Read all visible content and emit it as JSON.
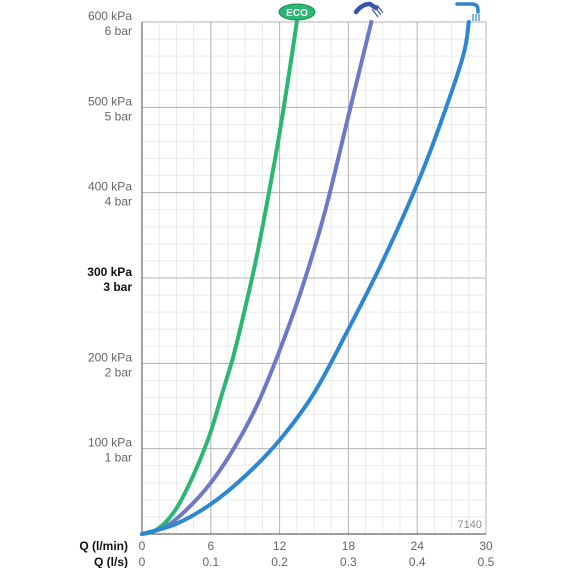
{
  "chart_data": {
    "type": "line",
    "code": "7140",
    "x_label_primary": "Q (l/min)",
    "x_label_secondary": "Q (l/s)",
    "x_ticks_primary": [
      "0",
      "6",
      "12",
      "18",
      "24",
      "30"
    ],
    "x_ticks_secondary": [
      "0",
      "0.1",
      "0.2",
      "0.3",
      "0.4",
      "0.5"
    ],
    "xlim": [
      0,
      30
    ],
    "ylim": [
      0,
      600
    ],
    "y_ticks": [
      {
        "value": 100,
        "kpa": "100 kPa",
        "bar": "1 bar",
        "bold": false
      },
      {
        "value": 200,
        "kpa": "200 kPa",
        "bar": "2 bar",
        "bold": false
      },
      {
        "value": 300,
        "kpa": "300 kPa",
        "bar": "3 bar",
        "bold": true
      },
      {
        "value": 400,
        "kpa": "400 kPa",
        "bar": "4 bar",
        "bold": false
      },
      {
        "value": 500,
        "kpa": "500 kPa",
        "bar": "5 bar",
        "bold": false
      },
      {
        "value": 600,
        "kpa": "600 kPa",
        "bar": "6 bar",
        "bold": false
      }
    ],
    "grid": true,
    "series": [
      {
        "label": "ECO",
        "color": "#2bb673",
        "icon": "eco-badge",
        "points": [
          [
            0,
            0
          ],
          [
            1,
            3
          ],
          [
            2,
            13
          ],
          [
            3,
            30
          ],
          [
            4,
            55
          ],
          [
            5,
            85
          ],
          [
            6,
            120
          ],
          [
            7,
            165
          ],
          [
            8,
            210
          ],
          [
            9,
            265
          ],
          [
            10,
            325
          ],
          [
            11,
            395
          ],
          [
            12,
            470
          ],
          [
            13,
            555
          ],
          [
            13.5,
            600
          ]
        ]
      },
      {
        "label": "",
        "color": "#6c79c8",
        "icon": "hand-shower-icon",
        "points": [
          [
            0,
            0
          ],
          [
            2,
            8
          ],
          [
            4,
            30
          ],
          [
            6,
            60
          ],
          [
            8,
            100
          ],
          [
            10,
            150
          ],
          [
            12,
            215
          ],
          [
            14,
            290
          ],
          [
            16,
            380
          ],
          [
            18,
            490
          ],
          [
            19,
            545
          ],
          [
            20,
            600
          ]
        ]
      },
      {
        "label": "",
        "color": "#2c86d2",
        "icon": "overhead-shower-icon",
        "points": [
          [
            0,
            0
          ],
          [
            3,
            12
          ],
          [
            6,
            35
          ],
          [
            9,
            68
          ],
          [
            12,
            110
          ],
          [
            15,
            165
          ],
          [
            18,
            240
          ],
          [
            21,
            320
          ],
          [
            24,
            410
          ],
          [
            26,
            480
          ],
          [
            28,
            560
          ],
          [
            28.5,
            600
          ]
        ]
      }
    ]
  }
}
